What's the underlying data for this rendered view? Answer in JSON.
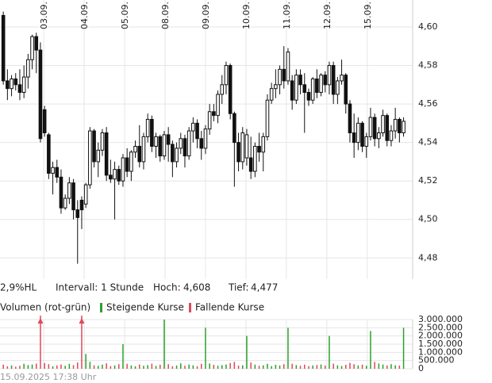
{
  "chart_data": {
    "type": "candlestick",
    "open": [
      4.606,
      4.572,
      4.568,
      4.573,
      4.57,
      4.566,
      4.574,
      4.583,
      4.595,
      4.588,
      4.557,
      4.544,
      4.524,
      4.527,
      4.522,
      4.506,
      4.511,
      4.519,
      4.505,
      4.51,
      4.508,
      4.518,
      4.546,
      4.53,
      4.536,
      4.545,
      4.523,
      4.521,
      4.526,
      4.52,
      4.532,
      4.525,
      4.535,
      4.538,
      4.53,
      4.543,
      4.552,
      4.538,
      4.543,
      4.533,
      4.544,
      4.539,
      4.53,
      4.537,
      4.542,
      4.533,
      4.546,
      4.55,
      4.542,
      4.537,
      4.547,
      4.556,
      4.554,
      4.565,
      4.57,
      4.58,
      4.555,
      4.54,
      4.53,
      4.532,
      4.532,
      4.525,
      4.538,
      4.535,
      4.543,
      4.562,
      4.568,
      4.57,
      4.578,
      4.572,
      4.572,
      4.562,
      4.575,
      4.57,
      4.566,
      4.562,
      4.573,
      4.566,
      4.575,
      4.57,
      4.58,
      4.565,
      4.572,
      4.575,
      4.56,
      4.545,
      4.54,
      4.55,
      4.538,
      4.543,
      4.553,
      4.542,
      4.545,
      4.554,
      4.541,
      4.546,
      4.552,
      4.545
    ],
    "high": [
      4.608,
      4.578,
      4.575,
      4.576,
      4.578,
      4.58,
      4.586,
      4.596,
      4.597,
      4.592,
      4.559,
      4.545,
      4.53,
      4.531,
      4.526,
      4.513,
      4.522,
      4.521,
      4.51,
      4.512,
      4.519,
      4.548,
      4.547,
      4.54,
      4.547,
      4.548,
      4.531,
      4.53,
      4.528,
      4.534,
      4.537,
      4.536,
      4.541,
      4.549,
      4.545,
      4.555,
      4.554,
      4.545,
      4.544,
      4.546,
      4.548,
      4.541,
      4.54,
      4.545,
      4.544,
      4.548,
      4.553,
      4.552,
      4.546,
      4.549,
      4.56,
      4.56,
      4.567,
      4.575,
      4.582,
      4.581,
      4.556,
      4.545,
      4.548,
      4.547,
      4.543,
      4.54,
      4.545,
      4.545,
      4.565,
      4.571,
      4.578,
      4.58,
      4.59,
      4.589,
      4.575,
      4.578,
      4.578,
      4.576,
      4.568,
      4.574,
      4.578,
      4.576,
      4.577,
      4.582,
      4.582,
      4.574,
      4.583,
      4.576,
      4.562,
      4.555,
      4.553,
      4.551,
      4.545,
      4.558,
      4.555,
      4.548,
      4.557,
      4.555,
      4.549,
      4.558,
      4.553,
      4.553
    ],
    "low": [
      4.57,
      4.562,
      4.564,
      4.567,
      4.562,
      4.563,
      4.568,
      4.578,
      4.576,
      4.54,
      4.543,
      4.521,
      4.513,
      4.519,
      4.503,
      4.505,
      4.508,
      4.5,
      4.477,
      4.495,
      4.506,
      4.516,
      4.527,
      4.522,
      4.533,
      4.52,
      4.519,
      4.5,
      4.518,
      4.517,
      4.522,
      4.52,
      4.532,
      4.527,
      4.526,
      4.54,
      4.535,
      4.532,
      4.53,
      4.531,
      4.53,
      4.522,
      4.527,
      4.534,
      4.527,
      4.531,
      4.54,
      4.537,
      4.531,
      4.534,
      4.544,
      4.551,
      4.55,
      4.56,
      4.565,
      4.552,
      4.517,
      4.525,
      4.526,
      4.528,
      4.521,
      4.522,
      4.53,
      4.525,
      4.541,
      4.56,
      4.563,
      4.565,
      4.568,
      4.57,
      4.557,
      4.56,
      4.565,
      4.545,
      4.559,
      4.56,
      4.563,
      4.564,
      4.566,
      4.565,
      4.56,
      4.56,
      4.57,
      4.555,
      4.54,
      4.532,
      4.536,
      4.535,
      4.532,
      4.541,
      4.538,
      4.537,
      4.543,
      4.538,
      4.538,
      4.542,
      4.54,
      4.543
    ],
    "close": [
      4.572,
      4.568,
      4.573,
      4.57,
      4.566,
      4.574,
      4.583,
      4.595,
      4.588,
      4.542,
      4.545,
      4.524,
      4.527,
      4.522,
      4.506,
      4.511,
      4.519,
      4.505,
      4.501,
      4.505,
      4.518,
      4.546,
      4.53,
      4.536,
      4.545,
      4.523,
      4.521,
      4.526,
      4.52,
      4.532,
      4.525,
      4.535,
      4.538,
      4.53,
      4.543,
      4.552,
      4.538,
      4.543,
      4.533,
      4.544,
      4.539,
      4.53,
      4.537,
      4.542,
      4.533,
      4.546,
      4.55,
      4.542,
      4.537,
      4.547,
      4.556,
      4.554,
      4.565,
      4.57,
      4.58,
      4.555,
      4.54,
      4.53,
      4.545,
      4.544,
      4.525,
      4.538,
      4.535,
      4.543,
      4.562,
      4.568,
      4.57,
      4.578,
      4.572,
      4.587,
      4.562,
      4.575,
      4.57,
      4.566,
      4.562,
      4.573,
      4.566,
      4.575,
      4.57,
      4.58,
      4.565,
      4.572,
      4.575,
      4.56,
      4.545,
      4.54,
      4.55,
      4.538,
      4.543,
      4.553,
      4.542,
      4.545,
      4.554,
      4.541,
      4.546,
      4.552,
      4.545,
      4.551
    ],
    "volume": [
      250000,
      150000,
      200000,
      120000,
      180000,
      300000,
      220000,
      260000,
      310000,
      3400000,
      350000,
      280000,
      150000,
      200000,
      260000,
      180000,
      300000,
      220000,
      380000,
      3400000,
      900000,
      420000,
      210000,
      180000,
      250000,
      330000,
      160000,
      200000,
      280000,
      1500000,
      300000,
      200000,
      150000,
      260000,
      180000,
      220000,
      310000,
      170000,
      240000,
      3000000,
      280000,
      150000,
      200000,
      330000,
      180000,
      260000,
      210000,
      150000,
      300000,
      2500000,
      320000,
      240000,
      180000,
      220000,
      260000,
      350000,
      420000,
      190000,
      210000,
      2000000,
      380000,
      250000,
      180000,
      210000,
      300000,
      160000,
      240000,
      200000,
      280000,
      2500000,
      300000,
      220000,
      180000,
      250000,
      160000,
      200000,
      230000,
      260000,
      190000,
      2000000,
      310000,
      210000,
      170000,
      240000,
      360000,
      280000,
      200000,
      250000,
      180000,
      2300000,
      420000,
      320000,
      260000,
      200000,
      280000,
      210000,
      190000,
      2500000
    ],
    "xlim": [
      -0.8,
      99.2
    ],
    "xticks": [
      {
        "value": 9.8,
        "label": "03.09."
      },
      {
        "value": 19.6,
        "label": "04.09."
      },
      {
        "value": 29.4,
        "label": "05.09."
      },
      {
        "value": 39.2,
        "label": "08.09."
      },
      {
        "value": 49.0,
        "label": "09.09."
      },
      {
        "value": 58.8,
        "label": "10.09."
      },
      {
        "value": 68.6,
        "label": "11.09."
      },
      {
        "value": 78.4,
        "label": "12.09."
      },
      {
        "value": 88.2,
        "label": "15.09."
      }
    ],
    "ylim": [
      4.469,
      4.614
    ],
    "yticks": [
      {
        "value": 4.48,
        "label": "4,48"
      },
      {
        "value": 4.5,
        "label": "4,50"
      },
      {
        "value": 4.52,
        "label": "4,52"
      },
      {
        "value": 4.54,
        "label": "4,54"
      },
      {
        "value": 4.56,
        "label": "4,56"
      },
      {
        "value": 4.58,
        "label": "4,58"
      },
      {
        "value": 4.6,
        "label": "4,60"
      }
    ],
    "y2lim": [
      0,
      3000000
    ],
    "y2ticks": [
      0,
      {
        "value": 500000,
        "label": "500.000"
      },
      {
        "value": 1000000,
        "label": "1.000.000"
      },
      {
        "value": 1500000,
        "label": "1.500.000"
      },
      {
        "value": 2000000,
        "label": "2.000.000"
      },
      {
        "value": 2500000,
        "label": "2.500.000"
      },
      {
        "value": 3000000,
        "label": "3.000.000"
      }
    ],
    "grid": true,
    "up_color": "#2ca02c",
    "down_color": "#e0485a",
    "volume_title": "Volumen (rot-grün)",
    "legend": [
      {
        "name": "Steigende Kurse",
        "color": "#2ca02c"
      },
      {
        "name": "Fallende Kurse",
        "color": "#e0485a"
      }
    ]
  },
  "info": {
    "range": "2,9%HL",
    "interval": "Intervall: 1 Stunde",
    "high_label": "Hoch:",
    "high_value": "4,608",
    "low_label": "Tief:",
    "low_value": "4,477",
    "timestamp": "15.09.2025 17:38 Uhr"
  }
}
